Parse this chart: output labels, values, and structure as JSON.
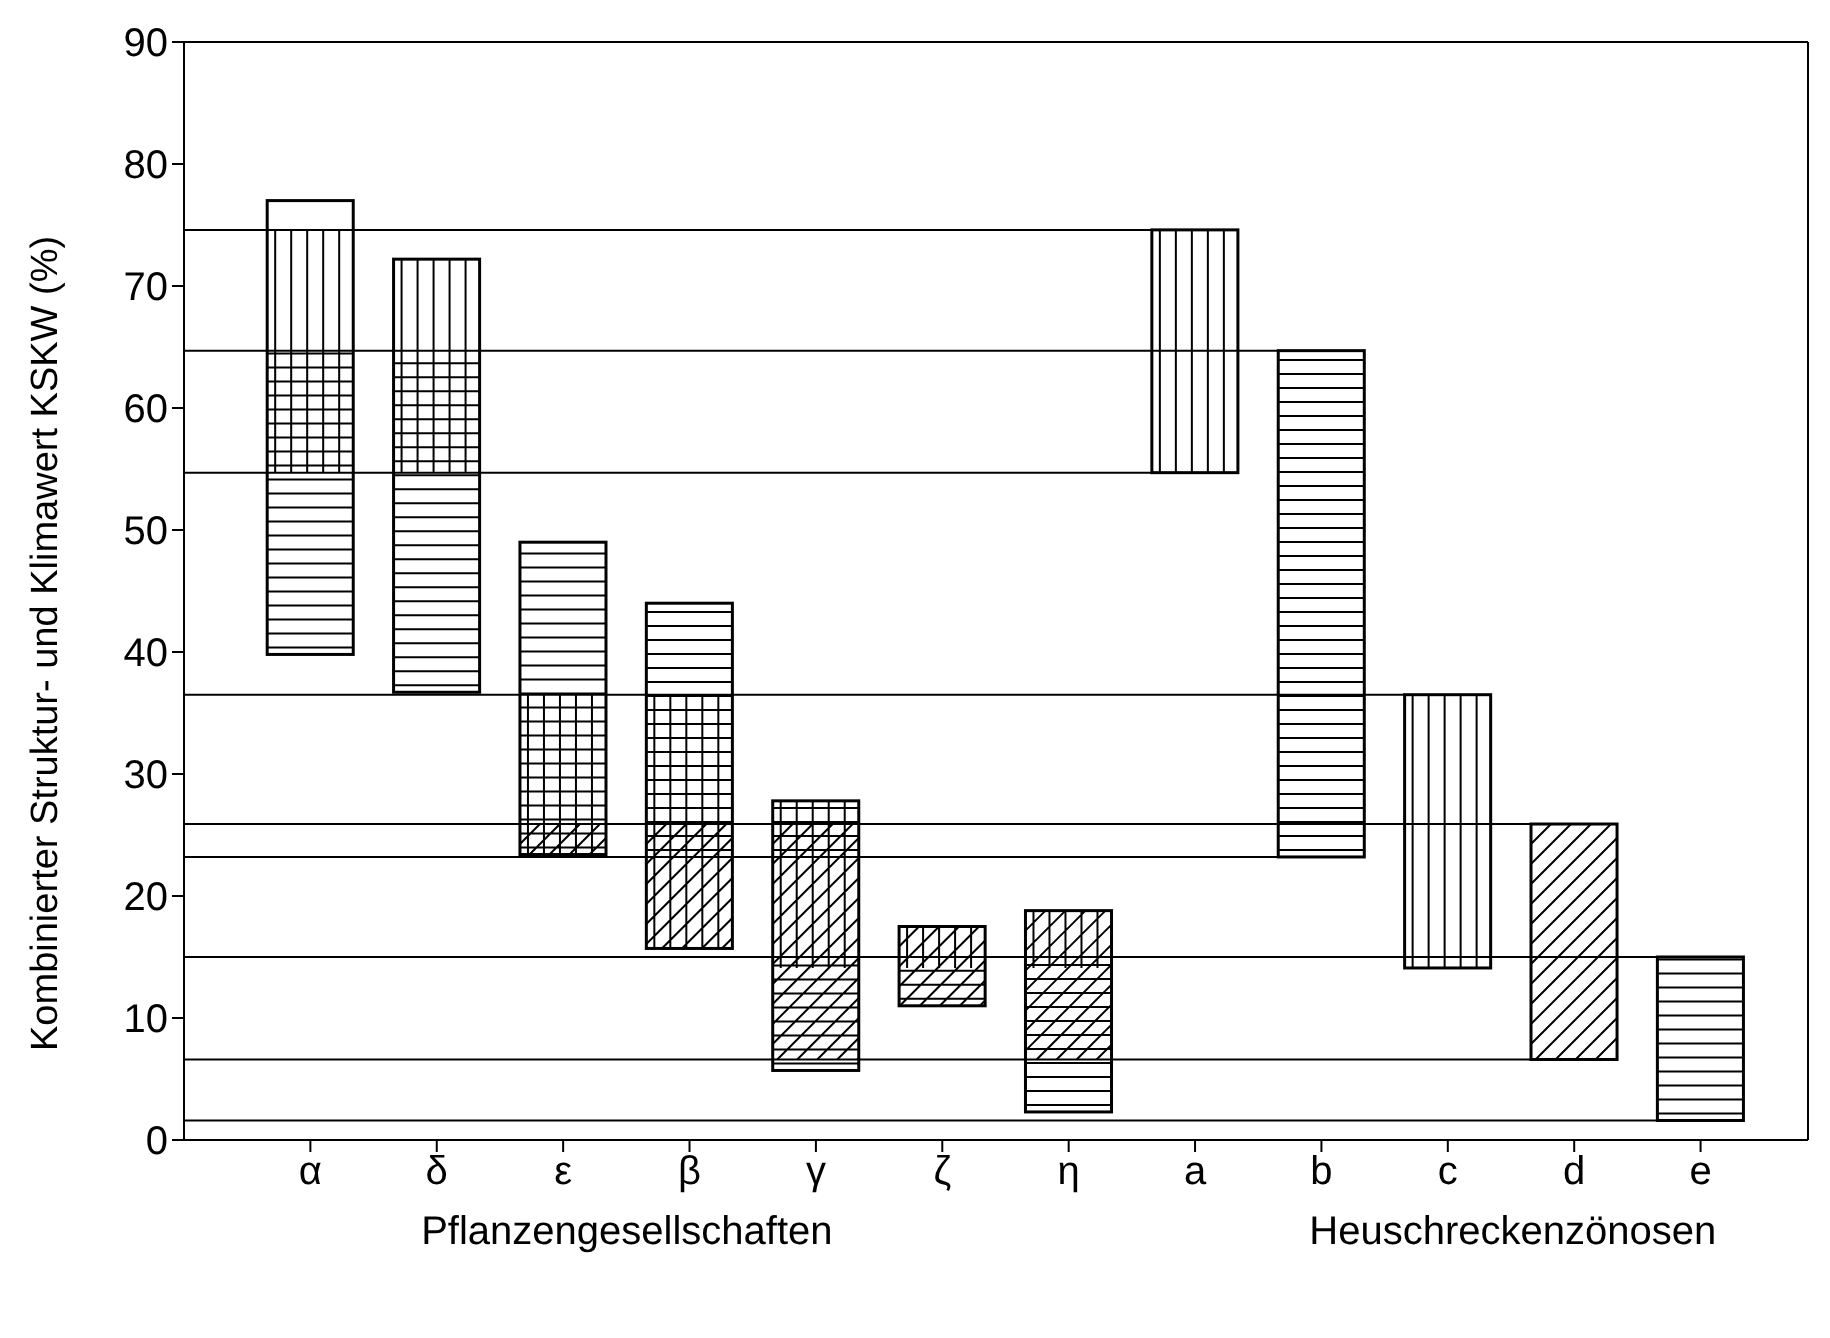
{
  "chart_data": {
    "type": "bar",
    "ylabel": "Kombinierter Struktur- und Klimawert KSKW (%)",
    "categories": [
      "α",
      "δ",
      "ε",
      "β",
      "γ",
      "ζ",
      "η",
      "a",
      "b",
      "c",
      "d",
      "e"
    ],
    "series": [
      {
        "color": "#000000",
        "values": [
          37.2,
          35.5,
          25.6,
          28.3,
          22.1,
          6.5,
          16.5,
          null,
          null,
          null,
          null,
          null
        ],
        "base": [
          39.8,
          36.7,
          23.4,
          15.7,
          5.7,
          11.0,
          2.3,
          null,
          null,
          null,
          null,
          null
        ]
      },
      {
        "color": "#000000",
        "values": [
          null,
          null,
          null,
          null,
          null,
          null,
          null,
          19.9,
          41.5,
          22.4,
          19.3,
          13.4
        ],
        "base": [
          null,
          null,
          null,
          null,
          null,
          null,
          null,
          54.7,
          23.2,
          14.1,
          6.6,
          1.6
        ]
      }
    ],
    "ylim": [
      0,
      90
    ],
    "yticks": [
      0,
      10,
      20,
      30,
      40,
      50,
      60,
      70,
      80,
      90
    ],
    "ref_lines": [
      {
        "axis": "y",
        "value": 74.6,
        "color": "#000000"
      },
      {
        "axis": "y",
        "value": 64.7,
        "color": "#000000"
      },
      {
        "axis": "y",
        "value": 54.7,
        "color": "#000000"
      },
      {
        "axis": "y",
        "value": 36.5,
        "color": "#000000"
      },
      {
        "axis": "y",
        "value": 25.9,
        "color": "#000000"
      },
      {
        "axis": "y",
        "value": 23.2,
        "color": "#000000"
      },
      {
        "axis": "y",
        "value": 15.0,
        "color": "#000000"
      },
      {
        "axis": "y",
        "value": 6.6,
        "color": "#000000"
      },
      {
        "axis": "y",
        "value": 1.6,
        "color": "#000000"
      }
    ],
    "annotations": [
      "Pflanzengesellschaften",
      "Heuschreckenzönosen"
    ],
    "grid": false
  }
}
